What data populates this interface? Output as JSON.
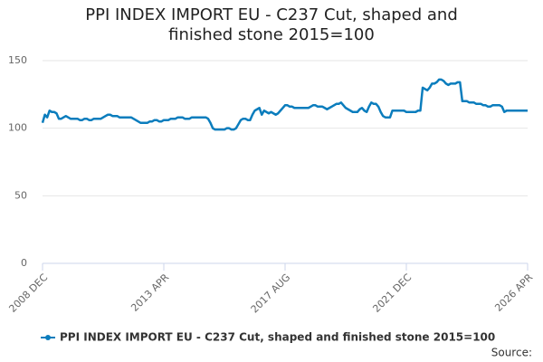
{
  "chart_data": {
    "type": "line",
    "title": "PPI INDEX IMPORT EU - C237 Cut, shaped and finished stone 2015=100",
    "source": "Source:",
    "categories": [
      "2008 DEC",
      null,
      null,
      null,
      null,
      null,
      null,
      null,
      null,
      null,
      null,
      null,
      null,
      null,
      null,
      null,
      null,
      null,
      null,
      null,
      null,
      null,
      null,
      null,
      null,
      null,
      null,
      null,
      null,
      null,
      null,
      null,
      null,
      null,
      null,
      null,
      null,
      null,
      null,
      null,
      null,
      null,
      null,
      null,
      null,
      null,
      null,
      null,
      null,
      null,
      null,
      null,
      "2013 APR",
      null,
      null,
      null,
      null,
      null,
      null,
      null,
      null,
      null,
      null,
      null,
      null,
      null,
      null,
      null,
      null,
      null,
      null,
      null,
      null,
      null,
      null,
      null,
      null,
      null,
      null,
      null,
      null,
      null,
      null,
      null,
      null,
      null,
      null,
      null,
      null,
      null,
      null,
      null,
      null,
      null,
      null,
      null,
      null,
      null,
      null,
      null,
      null,
      null,
      null,
      null,
      "2017 AUG",
      null,
      null,
      null,
      null,
      null,
      null,
      null,
      null,
      null,
      null,
      null,
      null,
      null,
      null,
      null,
      null,
      null,
      null,
      null,
      null,
      null,
      null,
      null,
      null,
      null,
      null,
      null,
      null,
      null,
      null,
      null,
      null,
      null,
      null,
      null,
      null,
      null,
      null,
      null,
      null,
      null,
      null,
      null,
      null,
      null,
      null,
      null,
      null,
      null,
      null,
      null,
      "2021 DEC",
      null,
      null,
      null,
      null,
      null,
      null,
      null,
      null,
      null,
      null,
      null,
      null,
      null,
      null,
      null,
      null,
      null,
      null,
      null,
      null,
      null,
      null,
      null,
      null,
      null,
      null,
      null,
      null,
      null,
      null,
      null,
      null,
      null,
      null,
      null,
      null,
      null,
      null,
      null,
      null,
      null,
      null,
      null,
      null,
      null,
      null,
      null,
      null,
      null,
      null,
      null,
      "2026 APR"
    ],
    "series": [
      {
        "name": "PPI INDEX IMPORT EU - C237 Cut, shaped and finished stone 2015=100",
        "color": "#0b7dbd",
        "values": [
          104,
          110,
          108,
          113,
          112,
          112,
          111,
          107,
          107,
          108,
          109,
          108,
          107,
          107,
          107,
          107,
          106,
          106,
          107,
          107,
          106,
          106,
          107,
          107,
          107,
          107,
          108,
          109,
          110,
          110,
          109,
          109,
          109,
          108,
          108,
          108,
          108,
          108,
          108,
          107,
          106,
          105,
          104,
          104,
          104,
          104,
          105,
          105,
          106,
          106,
          105,
          105,
          106,
          106,
          106,
          107,
          107,
          107,
          108,
          108,
          108,
          107,
          107,
          107,
          108,
          108,
          108,
          108,
          108,
          108,
          108,
          107,
          104,
          100,
          99,
          99,
          99,
          99,
          99,
          100,
          100,
          99,
          99,
          100,
          103,
          106,
          107,
          107,
          106,
          106,
          110,
          113,
          114,
          115,
          110,
          113,
          112,
          111,
          112,
          111,
          110,
          111,
          113,
          115,
          117,
          117,
          116,
          116,
          115,
          115,
          115,
          115,
          115,
          115,
          115,
          116,
          117,
          117,
          116,
          116,
          116,
          115,
          114,
          115,
          116,
          117,
          118,
          118,
          119,
          117,
          115,
          114,
          113,
          112,
          112,
          112,
          114,
          115,
          113,
          112,
          116,
          119,
          118,
          118,
          116,
          112,
          109,
          108,
          108,
          108,
          113,
          113,
          113,
          113,
          113,
          113,
          112,
          112,
          112,
          112,
          112,
          113,
          113,
          130,
          129,
          128,
          130,
          133,
          133,
          134,
          136,
          136,
          135,
          133,
          132,
          133,
          133,
          133,
          134,
          134,
          120,
          120,
          120,
          119,
          119,
          119,
          118,
          118,
          118,
          117,
          117,
          116,
          116,
          117,
          117,
          117,
          117,
          116,
          112,
          113,
          113,
          113,
          113,
          113,
          113,
          113,
          113,
          113,
          113
        ]
      }
    ],
    "ylim": [
      0,
      150
    ],
    "yticks": [
      0,
      50,
      100,
      150
    ],
    "grid": true
  }
}
